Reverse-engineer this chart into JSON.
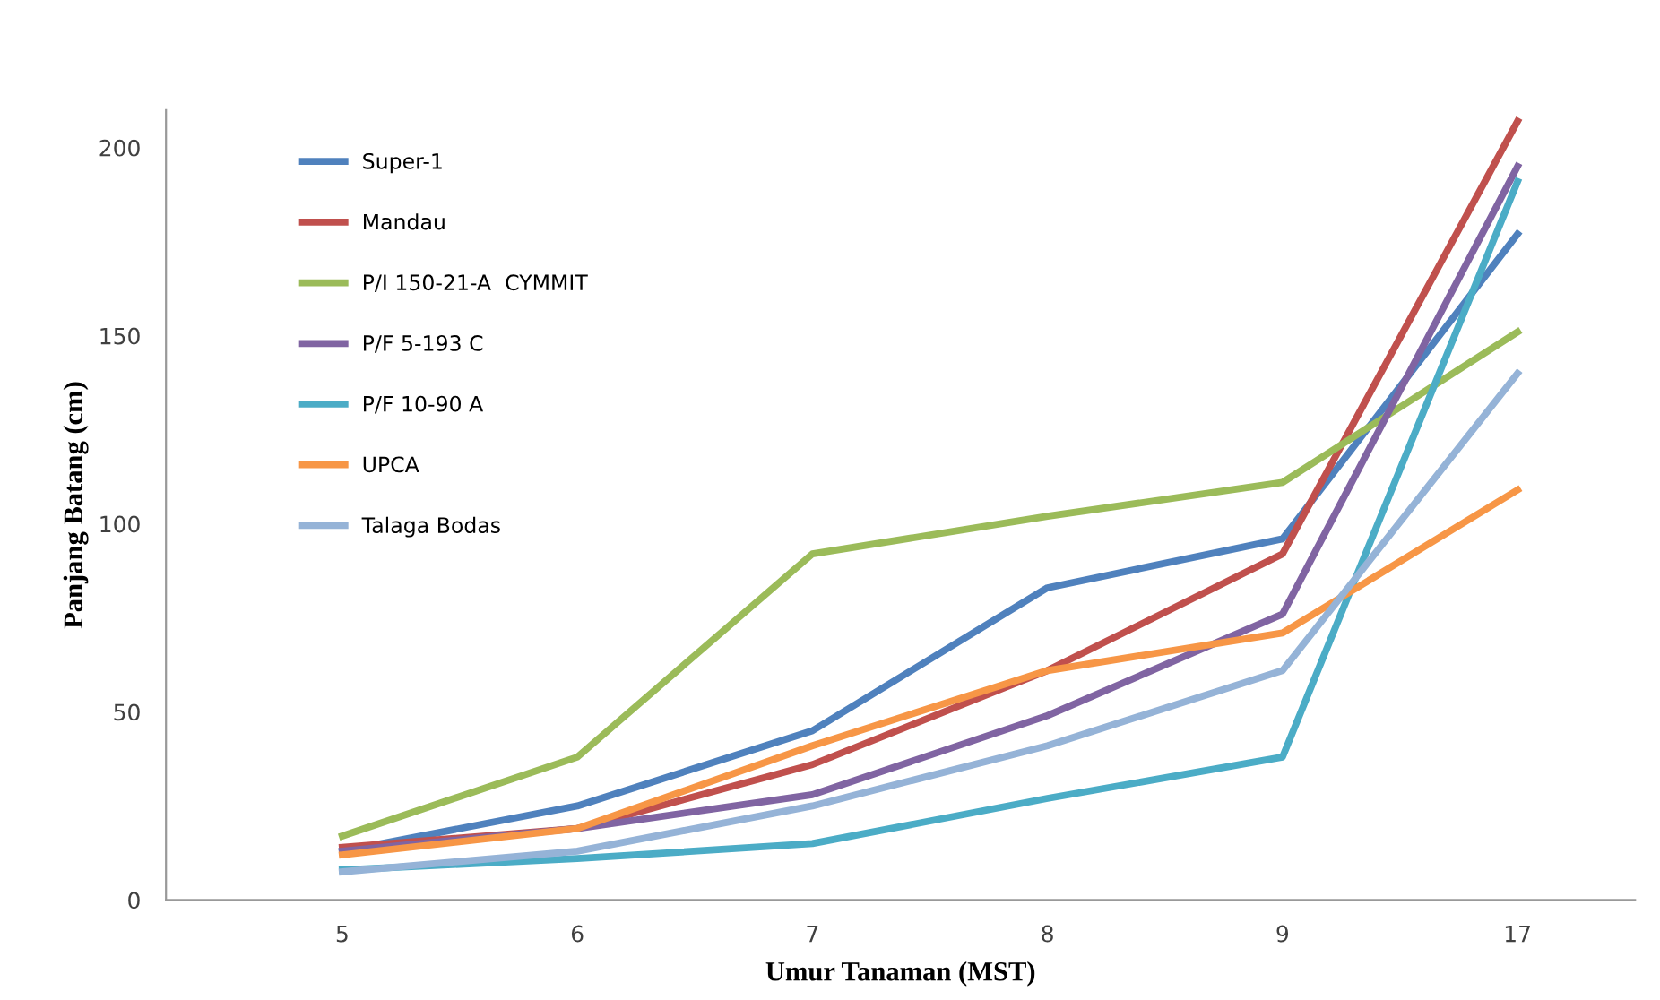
{
  "chart_data": {
    "type": "line",
    "xlabel": "Umur Tanaman (MST)",
    "ylabel": "Panjang Batang (cm)",
    "categories": [
      "5",
      "6",
      "7",
      "8",
      "9",
      "17"
    ],
    "series": [
      {
        "name": "Super-1",
        "color": "#4f81bd",
        "values": [
          13,
          25,
          45,
          83,
          96,
          177
        ]
      },
      {
        "name": "Mandau",
        "color": "#c0504d",
        "values": [
          14,
          19,
          36,
          61,
          92,
          207
        ]
      },
      {
        "name": "P/I 150-21-A  CYMMIT",
        "color": "#9bbb59",
        "values": [
          17,
          38,
          92,
          102,
          111,
          151
        ]
      },
      {
        "name": "P/F 5-193 C",
        "color": "#8064a2",
        "values": [
          13,
          19,
          28,
          49,
          76,
          195
        ]
      },
      {
        "name": "P/F 10-90 A",
        "color": "#4bacc6",
        "values": [
          8,
          11,
          15,
          27,
          38,
          191
        ]
      },
      {
        "name": "UPCA",
        "color": "#f79646",
        "values": [
          12,
          19,
          41,
          61,
          71,
          109
        ]
      },
      {
        "name": "Talaga Bodas",
        "color": "#95b3d7",
        "values": [
          7.5,
          13,
          25,
          41,
          61,
          140
        ]
      }
    ],
    "ylim": [
      0,
      210
    ],
    "yticks": [
      0,
      50,
      100,
      150,
      200
    ],
    "grid": false,
    "legend": "top left",
    "marker": "none",
    "line_style": "solid"
  }
}
